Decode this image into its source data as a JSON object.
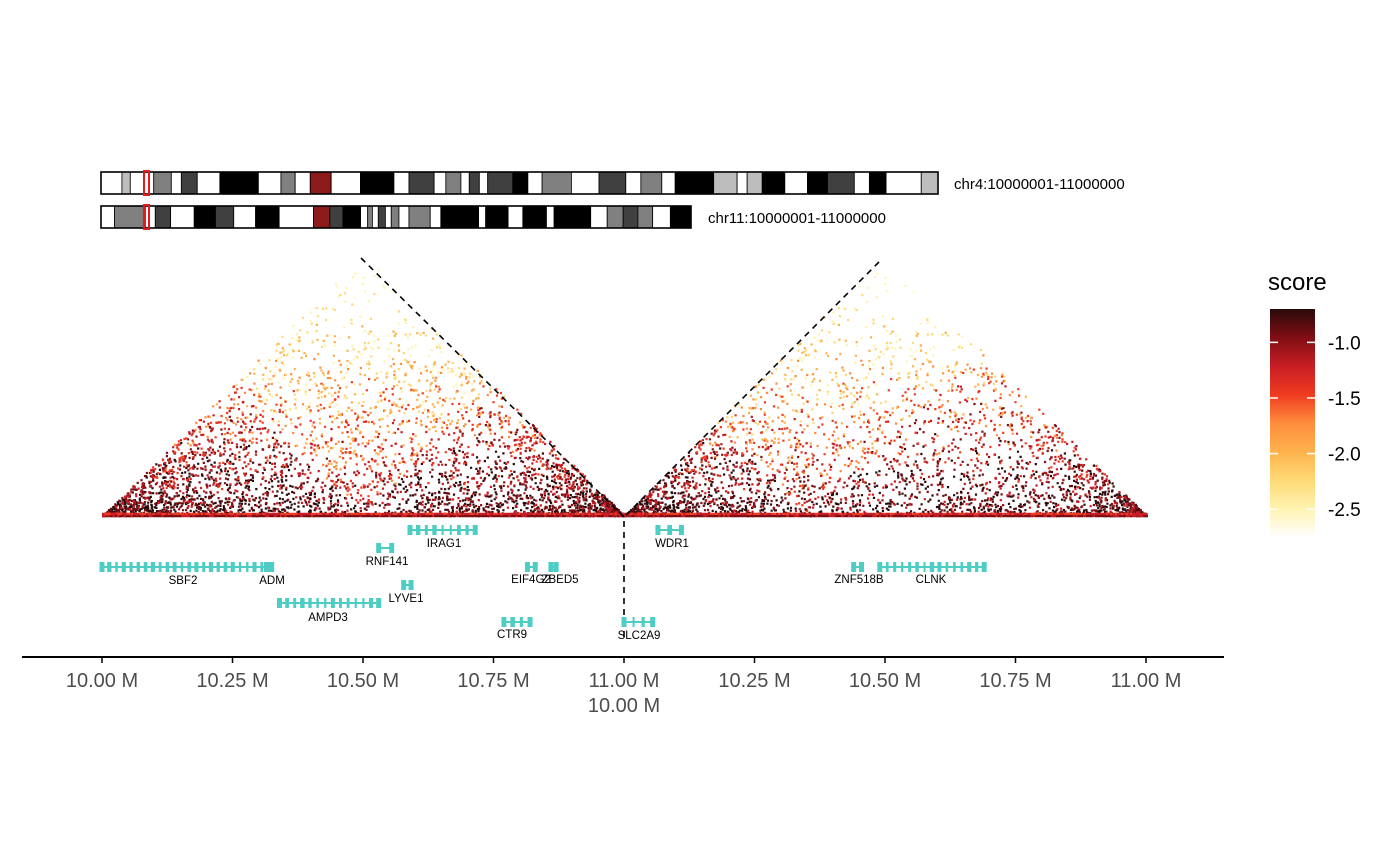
{
  "chart_data": {
    "type": "heatmap",
    "title": "",
    "regions": [
      {
        "label": "chr4:10000001-11000000",
        "start": 10000001,
        "end": 11000000
      },
      {
        "label": "chr11:10000001-11000000",
        "start": 10000001,
        "end": 11000000
      }
    ],
    "x_tick_labels": [
      "10.00 M",
      "10.25 M",
      "10.50 M",
      "10.75 M",
      "11.00 M",
      "10.25 M",
      "10.50 M",
      "10.75 M",
      "11.00 M"
    ],
    "x_tick_label_second_line": "10.00 M",
    "legend": {
      "title": "score",
      "ticks": [
        "-1.0",
        "-1.5",
        "-2.0",
        "-2.5"
      ],
      "tick_values": [
        -1.0,
        -1.5,
        -2.0,
        -2.5
      ],
      "range": [
        -2.75,
        -0.7
      ],
      "placement": "right"
    },
    "color_scale": [
      "#ffffff",
      "#fff3b0",
      "#fed976",
      "#feb24c",
      "#fd8d3c",
      "#f03b20",
      "#c81d25",
      "#7f0e14",
      "#2a0a0a"
    ],
    "heatmap_summary": {
      "domains_chr4_mb": [
        [
          10.0,
          10.5
        ],
        [
          10.5,
          11.0
        ]
      ],
      "domains_chr11_mb": [
        [
          10.0,
          10.35
        ],
        [
          10.35,
          11.0
        ]
      ]
    },
    "ideograms": [
      {
        "chromosome": "chr4",
        "highlight_color": "#e31a1c"
      },
      {
        "chromosome": "chr11",
        "highlight_color": "#e31a1c"
      }
    ],
    "gene_color": "#4ecdc4",
    "genes": [
      {
        "name": "SBF2",
        "panel": 0,
        "start": 10.0,
        "end": 10.32,
        "row": 1,
        "strand": "-"
      },
      {
        "name": "ADM",
        "panel": 0,
        "start": 10.315,
        "end": 10.325,
        "row": 1,
        "strand": "+"
      },
      {
        "name": "AMPD3",
        "panel": 0,
        "start": 10.34,
        "end": 10.53,
        "row": 3,
        "strand": "+"
      },
      {
        "name": "RNF141",
        "panel": 0,
        "start": 10.53,
        "end": 10.555,
        "row": 0.5,
        "strand": "-"
      },
      {
        "name": "LYVE1",
        "panel": 0,
        "start": 10.578,
        "end": 10.592,
        "row": 2,
        "strand": "-"
      },
      {
        "name": "IRAG1",
        "panel": 0,
        "start": 10.59,
        "end": 10.715,
        "row": 0,
        "strand": "-"
      },
      {
        "name": "EIF4G2",
        "panel": 0,
        "start": 10.815,
        "end": 10.83,
        "row": 1,
        "strand": "-"
      },
      {
        "name": "ZBED5",
        "panel": 0,
        "start": 10.86,
        "end": 10.87,
        "row": 1,
        "strand": "-"
      },
      {
        "name": "CTR9",
        "panel": 0,
        "start": 10.77,
        "end": 10.82,
        "row": 4,
        "strand": "+"
      },
      {
        "name": "SLC2A9",
        "panel": 1,
        "start": 10.0,
        "end": 10.055,
        "row": 4,
        "strand": "-"
      },
      {
        "name": "WDR1",
        "panel": 1,
        "start": 10.065,
        "end": 10.11,
        "row": 0,
        "strand": "-"
      },
      {
        "name": "ZNF518B",
        "panel": 1,
        "start": 10.44,
        "end": 10.455,
        "row": 1,
        "strand": "-"
      },
      {
        "name": "CLNK",
        "panel": 1,
        "start": 10.49,
        "end": 10.69,
        "row": 1,
        "strand": "-"
      }
    ]
  }
}
